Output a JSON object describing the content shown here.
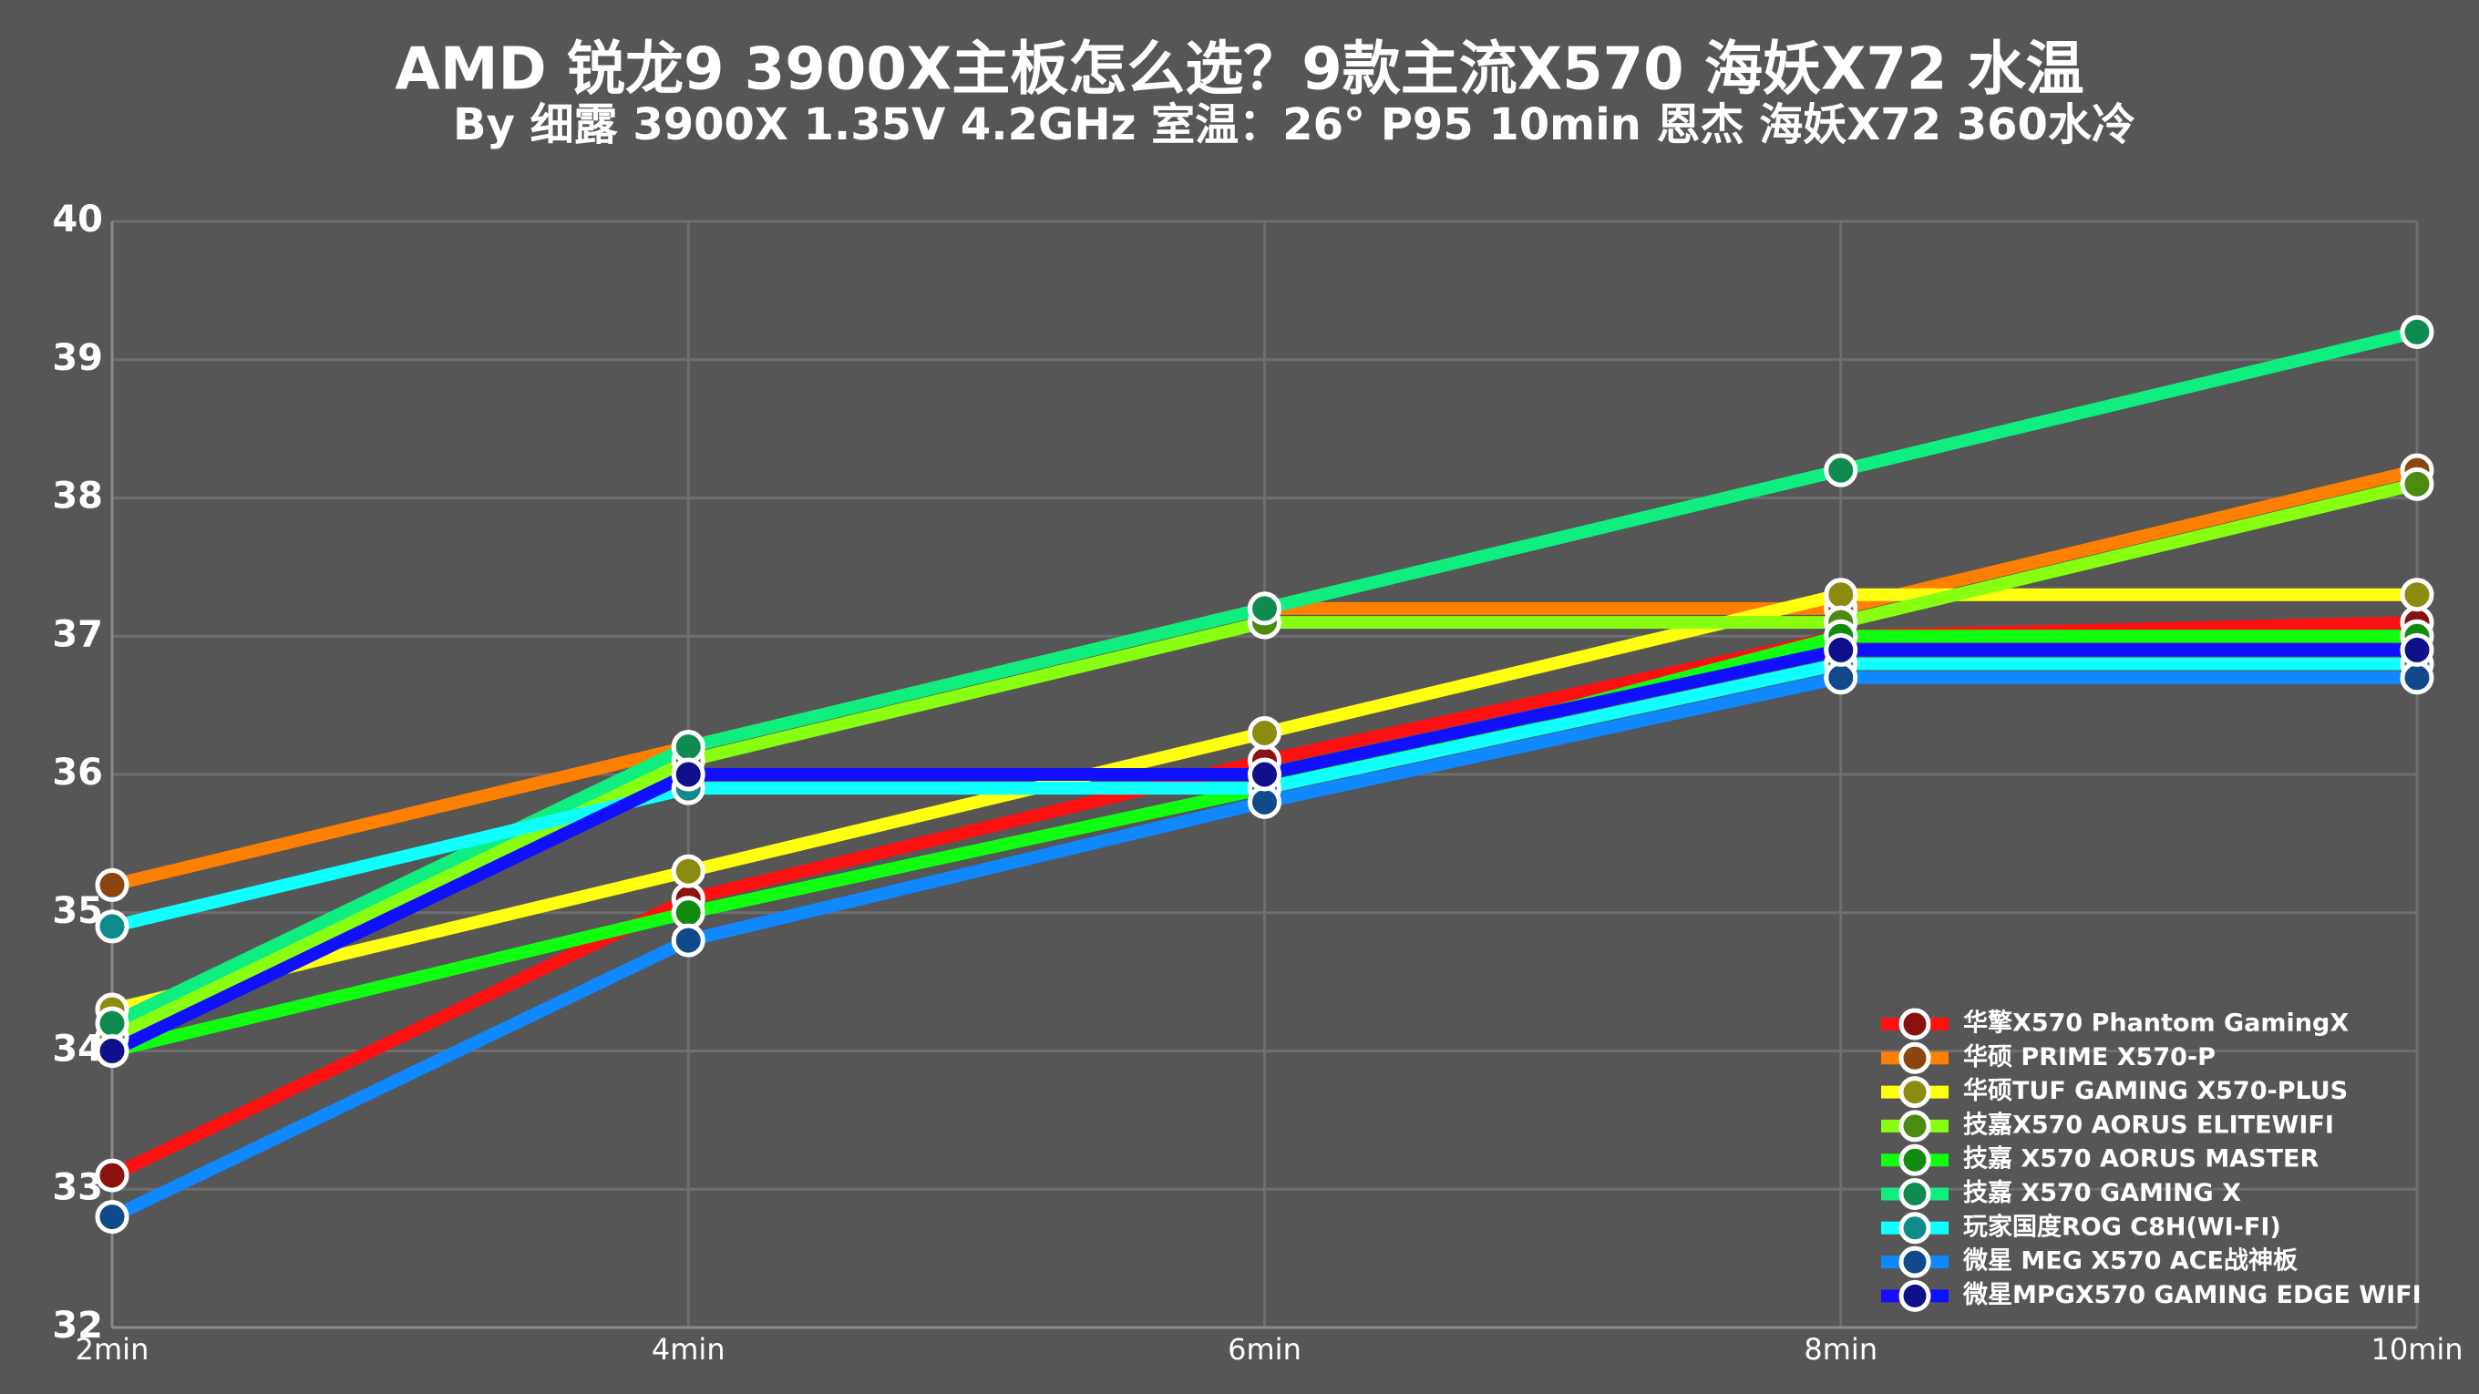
{
  "chart_data": {
    "type": "line",
    "title": "AMD 锐龙9 3900X主板怎么选？9款主流X570 海妖X72 水温",
    "subtitle": "By  细露  3900X 1.35V 4.2GHz 室温：26° P95 10min 恩杰 海妖X72 360水冷",
    "categories": [
      "2min",
      "4min",
      "6min",
      "8min",
      "10min"
    ],
    "ylim": [
      32,
      40
    ],
    "yticks": [
      32,
      33,
      34,
      35,
      36,
      37,
      38,
      39,
      40
    ],
    "grid": true,
    "legend": "lower right",
    "series": [
      {
        "name": "华擎X570 Phantom GamingX",
        "color": "#ff1010",
        "marker_color": "#8b1010",
        "values": [
          33.1,
          35.1,
          36.1,
          37.0,
          37.1
        ]
      },
      {
        "name": "华硕 PRIME X570-P",
        "color": "#ff8000",
        "marker_color": "#8b4510",
        "values": [
          35.2,
          36.2,
          37.2,
          37.2,
          38.2
        ]
      },
      {
        "name": "华硕TUF GAMING X570-PLUS",
        "color": "#ffff10",
        "marker_color": "#8b8b10",
        "values": [
          34.3,
          35.3,
          36.3,
          37.3,
          37.3
        ]
      },
      {
        "name": "技嘉X570 AORUS ELITEWIFI",
        "color": "#88ff10",
        "marker_color": "#4a8b10",
        "values": [
          34.1,
          36.1,
          37.1,
          37.1,
          38.1
        ]
      },
      {
        "name": "技嘉 X570 AORUS MASTER",
        "color": "#10ff10",
        "marker_color": "#108b10",
        "values": [
          34.0,
          35.0,
          35.9,
          37.0,
          37.0
        ]
      },
      {
        "name": "技嘉 X570 GAMING X",
        "color": "#10ee80",
        "marker_color": "#108b50",
        "values": [
          34.2,
          36.2,
          37.2,
          38.2,
          39.2
        ]
      },
      {
        "name": "玩家国度ROG C8H(WI-FI)",
        "color": "#10ffff",
        "marker_color": "#108b8b",
        "values": [
          34.9,
          35.9,
          35.9,
          36.8,
          36.8
        ]
      },
      {
        "name": "微星 MEG X570 ACE战神板",
        "color": "#1088ff",
        "marker_color": "#104a8b",
        "values": [
          32.8,
          34.8,
          35.8,
          36.7,
          36.7
        ]
      },
      {
        "name": "微星MPGX570 GAMING EDGE WIFI",
        "color": "#1010ff",
        "marker_color": "#10108b",
        "values": [
          34.0,
          36.0,
          36.0,
          36.9,
          36.9
        ]
      }
    ]
  }
}
